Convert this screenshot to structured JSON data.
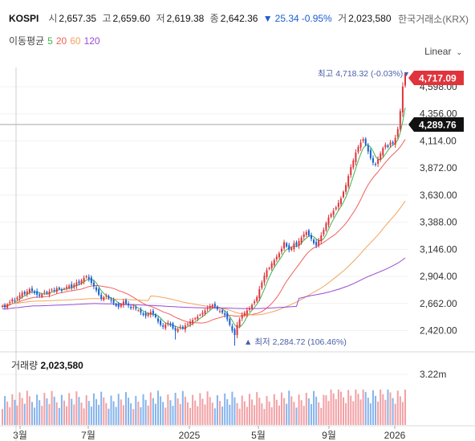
{
  "header": {
    "symbol": "KOSPI",
    "open_label": "시",
    "open": "2,657.35",
    "high_label": "고",
    "high": "2,659.60",
    "low_label": "저",
    "low": "2,619.38",
    "close_label": "종",
    "close": "2,642.36",
    "change_arrow": "▼",
    "change": "25.34",
    "change_pct": "-0.95%",
    "volume_label": "거",
    "volume": "2,023,580",
    "exchange": "한국거래소(KRX)"
  },
  "ma_legend": {
    "label": "이동평균",
    "periods": [
      "5",
      "20",
      "60",
      "120"
    ]
  },
  "scale_select": {
    "value": "Linear"
  },
  "colors": {
    "up": "#e0343c",
    "down": "#1a5fd1",
    "ma5": "#3cb44b",
    "ma20": "#f0605a",
    "ma60": "#f3a35c",
    "ma120": "#9a4ad6",
    "vol_up": "#f2a0a4",
    "vol_down": "#86b4ec"
  },
  "chart_data": {
    "type": "candlestick",
    "y_ticks": [
      "4,598.00",
      "4,356.00",
      "4,114.00",
      "3,872.00",
      "3,630.00",
      "3,388.00",
      "3,146.00",
      "2,904.00",
      "2,662.00",
      "2,420.00"
    ],
    "ylim": [
      2230,
      4770
    ],
    "x_ticks": [
      "3월",
      "7월",
      "2025",
      "5월",
      "9월",
      "2026"
    ],
    "current_price": "4,717.09",
    "crosshair_price": "4,289.76",
    "max_annotation": {
      "label": "최고",
      "value": "4,718.32",
      "pct": "(-0.03%)"
    },
    "min_annotation": {
      "label": "최저",
      "value": "2,284.72",
      "pct": "(106.46%)"
    },
    "volume_title": "거래량",
    "volume_value": "2,023,580",
    "volume_tick": "3.22m",
    "series": [
      {
        "name": "5"
      },
      {
        "name": "20"
      },
      {
        "name": "60"
      },
      {
        "name": "120"
      }
    ],
    "closes": [
      2640,
      2628,
      2652,
      2675,
      2700,
      2690,
      2712,
      2735,
      2758,
      2745,
      2770,
      2790,
      2775,
      2755,
      2740,
      2730,
      2745,
      2765,
      2752,
      2770,
      2785,
      2780,
      2798,
      2790,
      2775,
      2795,
      2810,
      2822,
      2805,
      2830,
      2850,
      2842,
      2870,
      2890,
      2905,
      2880,
      2845,
      2815,
      2780,
      2740,
      2705,
      2718,
      2730,
      2710,
      2690,
      2665,
      2640,
      2630,
      2655,
      2680,
      2660,
      2645,
      2620,
      2630,
      2615,
      2600,
      2580,
      2560,
      2550,
      2570,
      2585,
      2565,
      2540,
      2500,
      2470,
      2455,
      2475,
      2490,
      2470,
      2440,
      2420,
      2435,
      2455,
      2440,
      2465,
      2480,
      2500,
      2515,
      2530,
      2545,
      2560,
      2580,
      2600,
      2620,
      2640,
      2650,
      2635,
      2610,
      2595,
      2580,
      2560,
      2520,
      2470,
      2420,
      2380,
      2470,
      2520,
      2560,
      2580,
      2600,
      2620,
      2650,
      2680,
      2720,
      2790,
      2850,
      2910,
      2960,
      2980,
      3020,
      3050,
      3080,
      3110,
      3150,
      3210,
      3170,
      3140,
      3160,
      3200,
      3180,
      3220,
      3250,
      3280,
      3300,
      3270,
      3240,
      3200,
      3180,
      3230,
      3270,
      3320,
      3380,
      3430,
      3460,
      3490,
      3520,
      3560,
      3600,
      3660,
      3720,
      3800,
      3880,
      3940,
      4010,
      4060,
      4100,
      4130,
      4080,
      4020,
      3960,
      3920,
      3900,
      3950,
      4000,
      4050,
      4080,
      4060,
      4100,
      4090,
      4140,
      4220,
      4380,
      4600,
      4717
    ]
  }
}
